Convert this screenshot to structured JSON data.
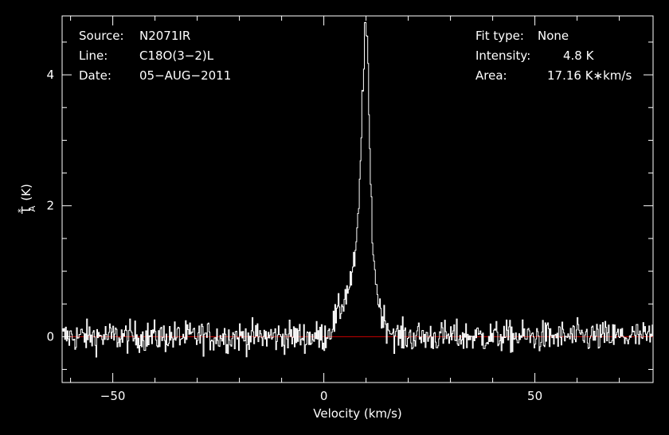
{
  "chart_data": {
    "type": "line",
    "xlabel": "Velocity (km/s)",
    "ylabel_main": "T",
    "ylabel_sub": "A",
    "ylabel_sup": "*",
    "ylabel_unit": "(K)",
    "xlim": [
      -62,
      78
    ],
    "ylim": [
      -0.7,
      4.9
    ],
    "x_ticks": [
      -50,
      0,
      50
    ],
    "x_tick_labels": [
      "−50",
      "0",
      "50"
    ],
    "y_ticks": [
      0,
      2,
      4
    ],
    "y_tick_labels": [
      "0",
      "2",
      "4"
    ],
    "grid": false,
    "baseline": 0,
    "baseline_range": [
      -60,
      78
    ],
    "baseline_color": "#cc0000",
    "line_color": "#ffffff",
    "background": "#000000",
    "noise_rms": 0.12,
    "peak_velocity": 9.8,
    "peak_value": 4.8,
    "series": [
      {
        "values_note_free": true,
        "profile": [
          [
            -62,
            0.0
          ],
          [
            0,
            0.0
          ],
          [
            2,
            0.18
          ],
          [
            4,
            0.45
          ],
          [
            5,
            0.62
          ],
          [
            6,
            0.8
          ],
          [
            7,
            1.05
          ],
          [
            7.8,
            1.5
          ],
          [
            8.5,
            2.4
          ],
          [
            9.0,
            3.6
          ],
          [
            9.5,
            4.45
          ],
          [
            9.8,
            4.8
          ],
          [
            10.2,
            4.45
          ],
          [
            10.6,
            3.4
          ],
          [
            11.0,
            2.3
          ],
          [
            11.5,
            1.45
          ],
          [
            12.2,
            0.85
          ],
          [
            13.0,
            0.5
          ],
          [
            14.0,
            0.28
          ],
          [
            15.5,
            0.12
          ],
          [
            17,
            0.0
          ],
          [
            78,
            0.0
          ]
        ]
      }
    ],
    "annotations": {
      "source_key": "Source:",
      "source_val": "N2071IR",
      "line_key": "Line:",
      "line_val": "C18O(3−2)L",
      "date_key": "Date:",
      "date_val": "05−AUG−2011",
      "fit_key": "Fit type:",
      "fit_val": "None",
      "intensity_key": "Intensity:",
      "intensity_val": "4.8 K",
      "area_key": "Area:",
      "area_val": "17.16 K∗km/s"
    }
  }
}
